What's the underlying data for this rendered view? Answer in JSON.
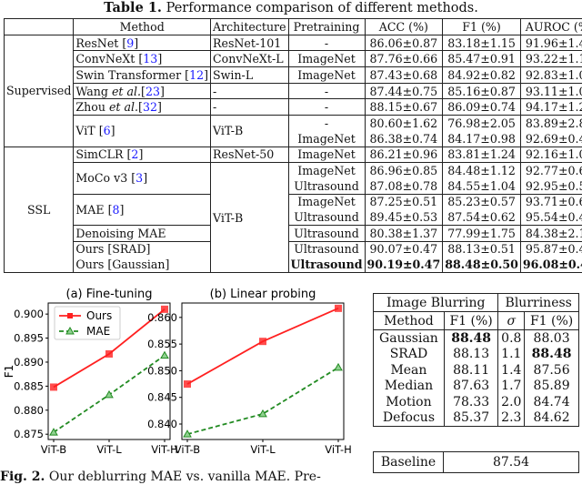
{
  "table1": {
    "title_bold": "Table 1.",
    "title_rest": " Performance comparison of different methods.",
    "headers": [
      "",
      "Method",
      "Architecture",
      "Pretraining",
      "ACC (%)",
      "F1 (%)",
      "AUROC (%)"
    ],
    "groups": [
      {
        "label": "Supervised",
        "rows": 7
      },
      {
        "label": "SSL",
        "rows": 8
      }
    ],
    "rows": [
      {
        "method": [
          "ResNet ",
          "",
          ""
        ],
        "ref": "9",
        "mspan": 1,
        "arch": "ResNet-101",
        "aspan": 1,
        "pre": "-",
        "acc": "86.06±0.87",
        "f1": "83.18±1.15",
        "auroc": "91.96±1.47"
      },
      {
        "method": [
          "ConvNeXt ",
          "",
          ""
        ],
        "ref": "13",
        "mspan": 1,
        "arch": "ConvNeXt-L",
        "aspan": 1,
        "pre": "ImageNet",
        "acc": "87.76±0.66",
        "f1": "85.47±0.91",
        "auroc": "93.22±1.10"
      },
      {
        "method": [
          "Swin Transformer ",
          "",
          ""
        ],
        "ref": "12",
        "mspan": 1,
        "arch": "Swin-L",
        "aspan": 1,
        "pre": "ImageNet",
        "acc": "87.43±0.68",
        "f1": "84.92±0.82",
        "auroc": "92.83±1.02"
      },
      {
        "method": [
          "Wang ",
          "et al.",
          ""
        ],
        "ref": "23",
        "mspan": 1,
        "arch": "-",
        "aspan": 1,
        "pre": "-",
        "acc": "87.44±0.75",
        "f1": "85.16±0.87",
        "auroc": "93.11±1.09"
      },
      {
        "method": [
          "Zhou ",
          "et al.",
          ""
        ],
        "ref": "32",
        "mspan": 1,
        "arch": "-",
        "aspan": 1,
        "pre": "-",
        "acc": "88.15±0.67",
        "f1": "86.09±0.74",
        "auroc": "94.17±1.21"
      },
      {
        "method": [
          "ViT ",
          "",
          ""
        ],
        "ref": "6",
        "mspan": 2,
        "arch": "ViT-B",
        "aspan": 2,
        "pre": "-",
        "acc": "80.60±1.62",
        "f1": "76.98±2.05",
        "auroc": "83.89±2.89"
      },
      {
        "pre": "ImageNet",
        "acc": "86.38±0.74",
        "f1": "84.17±0.98",
        "auroc": "92.69±0.48"
      },
      {
        "method": [
          "SimCLR ",
          "",
          ""
        ],
        "ref": "2",
        "mspan": 1,
        "arch": "ResNet-50",
        "aspan": 1,
        "pre": "ImageNet",
        "acc": "86.21±0.96",
        "f1": "83.81±1.24",
        "auroc": "92.16±1.08"
      },
      {
        "method": [
          "MoCo v3 ",
          "",
          ""
        ],
        "ref": "3",
        "mspan": 2,
        "arch": "ViT-B",
        "aspan": 7,
        "pre": "ImageNet",
        "acc": "86.96±0.85",
        "f1": "84.48±1.12",
        "auroc": "92.77±0.67"
      },
      {
        "pre": "Ultrasound",
        "acc": "87.08±0.78",
        "f1": "84.55±1.04",
        "auroc": "92.95±0.59"
      },
      {
        "method": [
          "MAE ",
          "",
          ""
        ],
        "ref": "8",
        "mspan": 2,
        "pre": "ImageNet",
        "acc": "87.25±0.51",
        "f1": "85.23±0.57",
        "auroc": "93.71±0.60"
      },
      {
        "pre": "Ultrasound",
        "acc": "89.45±0.53",
        "f1": "87.54±0.62",
        "auroc": "95.54±0.46"
      },
      {
        "method": [
          "Denoising MAE",
          "",
          ""
        ],
        "ref": "",
        "mspan": 1,
        "pre": "Ultrasound",
        "acc": "80.38±1.37",
        "f1": "77.99±1.75",
        "auroc": "84.38±2.13"
      },
      {
        "method": [
          "Ours [SRAD]",
          "",
          ""
        ],
        "ref": "",
        "mspan": 1,
        "pre": "Ultrasound",
        "acc": "90.07±0.47",
        "f1": "88.13±0.51",
        "auroc": "95.87±0.45",
        "sub": true
      },
      {
        "method": [
          "Ours [Gaussian]",
          "",
          ""
        ],
        "ref": "",
        "mspan": 1,
        "pre": "Ultrasound",
        "acc": "90.19±0.47",
        "f1": "88.48±0.50",
        "auroc": "96.08±0.41",
        "bold": true,
        "sub": true
      }
    ]
  },
  "chart_data": [
    {
      "type": "line",
      "title": "(a) Fine-tuning",
      "xlabel": "",
      "ylabel": "F1",
      "categories": [
        "ViT-B",
        "ViT-L",
        "ViT-H"
      ],
      "yticks": [
        "0.875",
        "0.880",
        "0.885",
        "0.890",
        "0.895",
        "0.900"
      ],
      "ylim": [
        0.8739,
        0.9023
      ],
      "legend": "top-left",
      "series": [
        {
          "name": "Ours",
          "values": [
            0.8848,
            0.8917,
            0.901
          ],
          "color": "#ff2020",
          "marker": "square",
          "dash": false
        },
        {
          "name": "MAE",
          "values": [
            0.8754,
            0.8832,
            0.8914
          ],
          "color": "#228B22",
          "marker": "triangle",
          "dash": true
        }
      ]
    },
    {
      "type": "line",
      "title": "(b) Linear probing",
      "xlabel": "",
      "ylabel": "",
      "categories": [
        "ViT-B",
        "ViT-L",
        "ViT-H"
      ],
      "yticks": [
        "0.840",
        "0.845",
        "0.850",
        "0.855",
        "0.860"
      ],
      "ylim": [
        0.8371,
        0.8627
      ],
      "series": [
        {
          "values": [
            0.8475,
            0.8555,
            0.8617
          ],
          "color": "#ff2020",
          "marker": "square",
          "dash": false
        },
        {
          "values": [
            0.8381,
            0.8419,
            0.8506
          ],
          "color": "#228B22",
          "marker": "triangle",
          "dash": true
        }
      ]
    }
  ],
  "table2": {
    "h1": [
      "Image Blurring",
      "Blurriness"
    ],
    "h2": [
      "Method",
      "F1 (%)",
      "σ",
      "F1 (%)"
    ],
    "rows": [
      [
        "Gaussian",
        "88.48",
        "0.8",
        "88.03"
      ],
      [
        "SRAD",
        "88.13",
        "1.1",
        "88.48"
      ],
      [
        "Mean",
        "88.11",
        "1.4",
        "87.56"
      ],
      [
        "Median",
        "87.63",
        "1.7",
        "85.89"
      ],
      [
        "Motion",
        "78.33",
        "2.0",
        "84.74"
      ],
      [
        "Defocus",
        "85.37",
        "2.3",
        "84.62"
      ]
    ],
    "bold": [
      [
        0,
        1
      ],
      [
        1,
        3
      ]
    ],
    "baseline_label": "Baseline",
    "baseline_value": "87.54"
  },
  "fig2": {
    "label": "Fig. 2.",
    "text": " Our deblurring MAE vs. vanilla MAE. Pre-"
  }
}
